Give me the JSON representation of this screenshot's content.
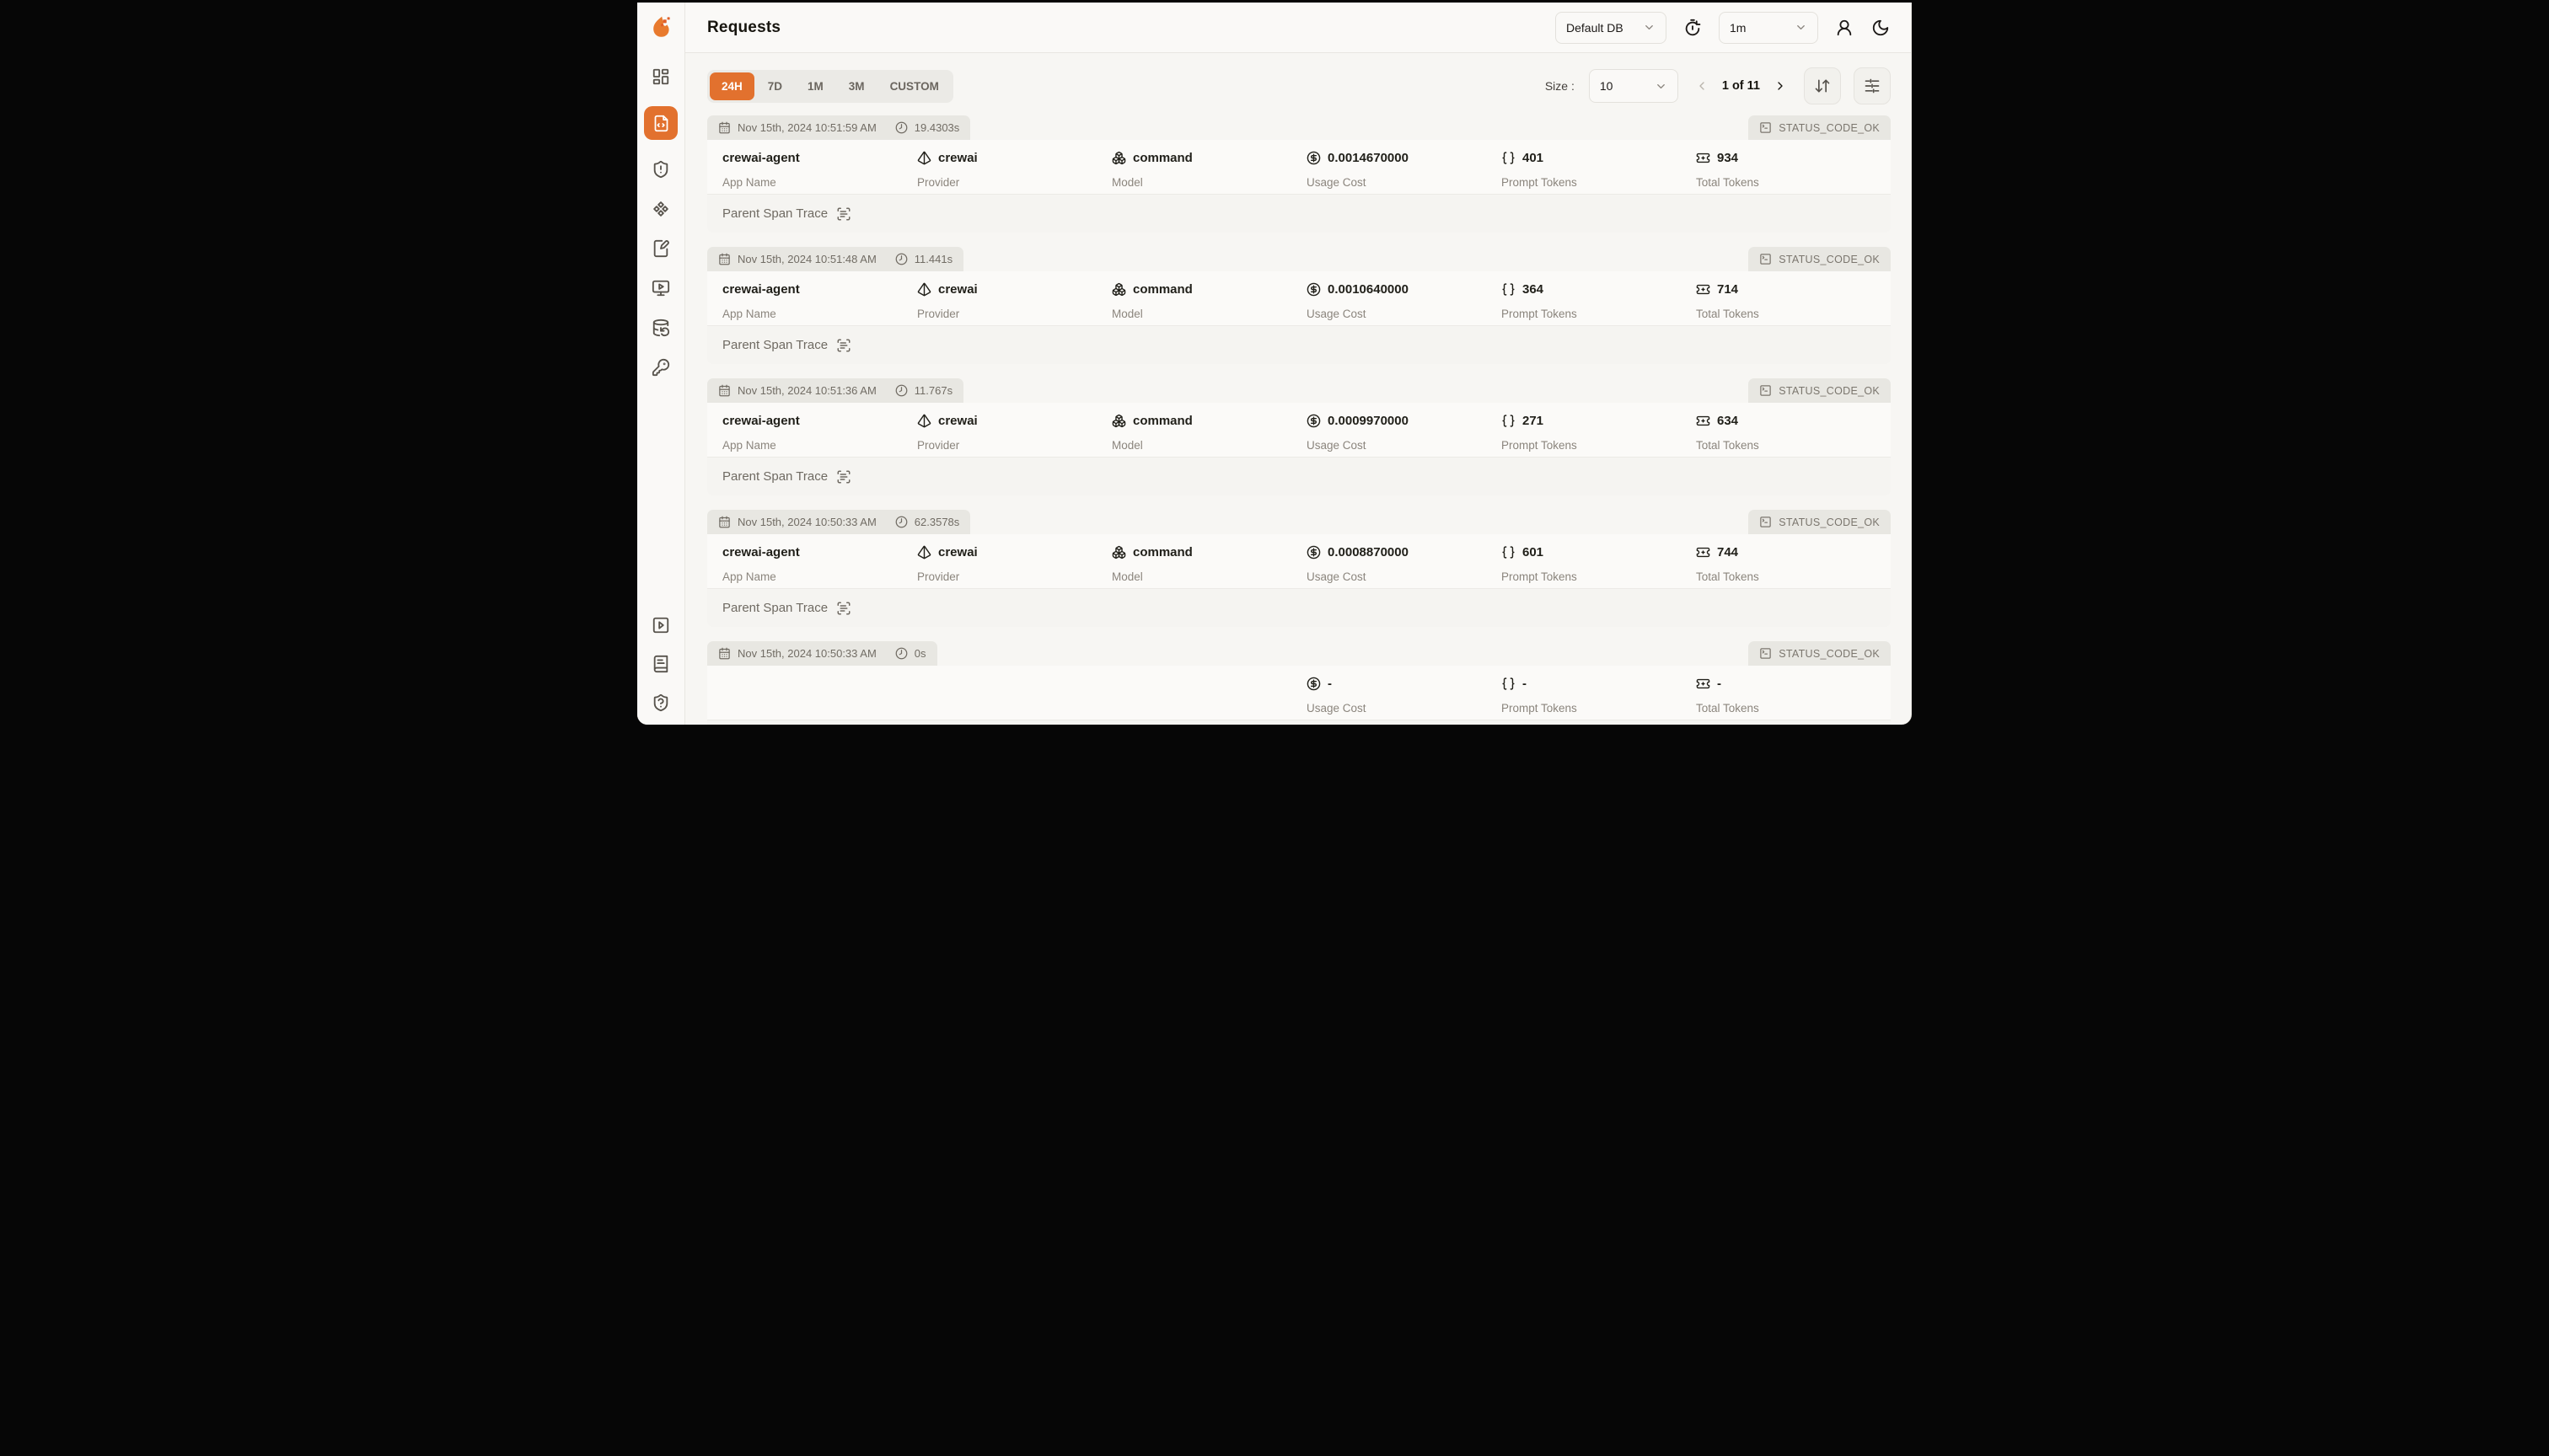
{
  "colors": {
    "accent": "#E2712E"
  },
  "header": {
    "title": "Requests",
    "database_selected": "Default DB",
    "refresh_interval_selected": "1m"
  },
  "sidebar": {
    "top_items": [
      {
        "name": "dashboard",
        "icon": "layout-dashboard",
        "active": false
      },
      {
        "name": "requests",
        "icon": "file-code",
        "active": true
      },
      {
        "name": "exceptions",
        "icon": "shield-alert",
        "active": false
      },
      {
        "name": "prompt-hub",
        "icon": "diamonds",
        "active": false
      },
      {
        "name": "vault",
        "icon": "notebook-pen",
        "active": false
      },
      {
        "name": "openground",
        "icon": "monitor-play",
        "active": false
      },
      {
        "name": "database-config",
        "icon": "database-backup",
        "active": false
      },
      {
        "name": "api-keys",
        "icon": "key",
        "active": false
      }
    ],
    "bottom_items": [
      {
        "name": "getting-started",
        "icon": "square-play",
        "active": false
      },
      {
        "name": "documentation",
        "icon": "book-text",
        "active": false
      },
      {
        "name": "support",
        "icon": "shield-question",
        "active": false
      }
    ]
  },
  "toolbar": {
    "time_ranges": [
      "24H",
      "7D",
      "1M",
      "3M",
      "CUSTOM"
    ],
    "active_time_range": "24H",
    "size_label": "Size :",
    "size_value": "10",
    "pagination_text": "1 of 11"
  },
  "columns": [
    {
      "key": "app_name",
      "label": "App Name",
      "icon": null
    },
    {
      "key": "provider",
      "label": "Provider",
      "icon": "pyramid"
    },
    {
      "key": "model",
      "label": "Model",
      "icon": "boxes"
    },
    {
      "key": "usage_cost",
      "label": "Usage Cost",
      "icon": "circle-dollar"
    },
    {
      "key": "prompt_tokens",
      "label": "Prompt Tokens",
      "icon": "braces"
    },
    {
      "key": "total_tokens",
      "label": "Total Tokens",
      "icon": "ticket"
    }
  ],
  "labels": {
    "parent_span_trace": "Parent Span Trace"
  },
  "requests": [
    {
      "timestamp": "Nov 15th, 2024 10:51:59 AM",
      "duration": "19.4303s",
      "status": "STATUS_CODE_OK",
      "app_name": "crewai-agent",
      "provider": "crewai",
      "model": "command",
      "usage_cost": "0.0014670000",
      "prompt_tokens": "401",
      "total_tokens": "934"
    },
    {
      "timestamp": "Nov 15th, 2024 10:51:48 AM",
      "duration": "11.441s",
      "status": "STATUS_CODE_OK",
      "app_name": "crewai-agent",
      "provider": "crewai",
      "model": "command",
      "usage_cost": "0.0010640000",
      "prompt_tokens": "364",
      "total_tokens": "714"
    },
    {
      "timestamp": "Nov 15th, 2024 10:51:36 AM",
      "duration": "11.767s",
      "status": "STATUS_CODE_OK",
      "app_name": "crewai-agent",
      "provider": "crewai",
      "model": "command",
      "usage_cost": "0.0009970000",
      "prompt_tokens": "271",
      "total_tokens": "634"
    },
    {
      "timestamp": "Nov 15th, 2024 10:50:33 AM",
      "duration": "62.3578s",
      "status": "STATUS_CODE_OK",
      "app_name": "crewai-agent",
      "provider": "crewai",
      "model": "command",
      "usage_cost": "0.0008870000",
      "prompt_tokens": "601",
      "total_tokens": "744"
    },
    {
      "timestamp": "Nov 15th, 2024 10:50:33 AM",
      "duration": "0s",
      "status": "STATUS_CODE_OK",
      "app_name": null,
      "provider": null,
      "model": null,
      "usage_cost": "-",
      "prompt_tokens": "-",
      "total_tokens": "-"
    }
  ]
}
